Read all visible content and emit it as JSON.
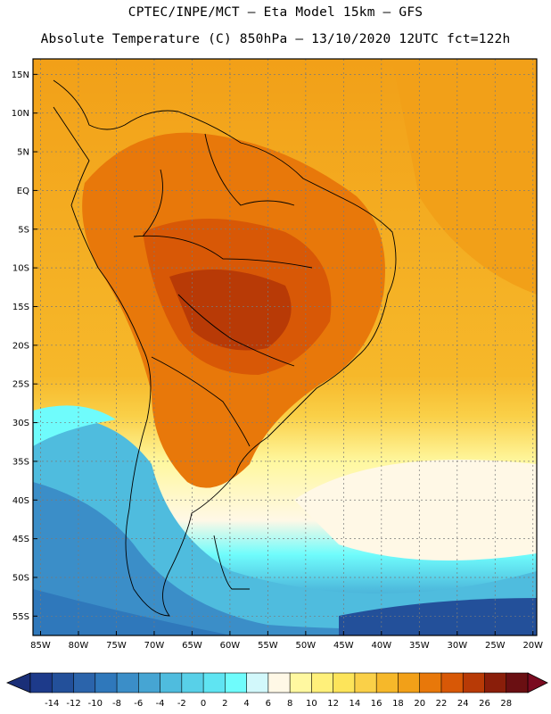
{
  "header": {
    "line1": "CPTEC/INPE/MCT –  Eta Model 15km – GFS",
    "line2": "Absolute Temperature (C) 850hPa – 13/10/2020 12UTC fct=122h"
  },
  "map": {
    "lat_labels": [
      "15N",
      "10N",
      "5N",
      "EQ",
      "5S",
      "10S",
      "15S",
      "20S",
      "25S",
      "30S",
      "35S",
      "40S",
      "45S",
      "50S",
      "55S"
    ],
    "lat_values": [
      15,
      10,
      5,
      0,
      -5,
      -10,
      -15,
      -20,
      -25,
      -30,
      -35,
      -40,
      -45,
      -50,
      -55
    ],
    "lon_labels": [
      "85W",
      "80W",
      "75W",
      "70W",
      "65W",
      "60W",
      "55W",
      "50W",
      "45W",
      "40W",
      "35W",
      "30W",
      "25W",
      "20W"
    ],
    "lon_values": [
      -85,
      -80,
      -75,
      -70,
      -65,
      -60,
      -55,
      -50,
      -45,
      -40,
      -35,
      -30,
      -25,
      -20
    ],
    "lat_range": [
      -57.5,
      17
    ],
    "lon_range": [
      -86,
      -19.5
    ]
  },
  "colorbar": {
    "labels": [
      "-14",
      "-12",
      "-10",
      "-8",
      "-6",
      "-4",
      "-2",
      "0",
      "2",
      "4",
      "6",
      "8",
      "10",
      "12",
      "14",
      "16",
      "18",
      "20",
      "22",
      "24",
      "26",
      "28"
    ],
    "colors": [
      "#1d3a8a",
      "#23509a",
      "#2b64ab",
      "#2f78bb",
      "#3b8ec8",
      "#46a5d3",
      "#4fbcde",
      "#58d0e8",
      "#5fe4f2",
      "#6ffcfc",
      "#d2f8fb",
      "#fff8e6",
      "#fff8a0",
      "#fff07a",
      "#fde45a",
      "#fad048",
      "#f6b82a",
      "#f2a018",
      "#e8780a",
      "#d85806",
      "#b83a06",
      "#8a1e0a",
      "#6a0f12"
    ]
  },
  "colors": {
    "warm": "#f2a018",
    "hot": "#d85806",
    "veryhot": "#b83a06",
    "cool": "#58d0e8",
    "cold": "#2f78bb",
    "pale": "#fff8e6"
  }
}
